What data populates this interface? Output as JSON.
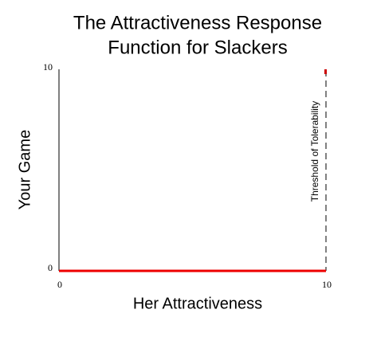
{
  "chart_data": {
    "type": "line",
    "title": [
      "The Attractiveness Response",
      "Function for Slackers"
    ],
    "x_label": "Her Attractiveness",
    "y_label": "Your Game",
    "xlim": [
      0,
      10
    ],
    "ylim": [
      0,
      10
    ],
    "xticks": [
      0,
      10
    ],
    "yticks": [
      0,
      10
    ],
    "grid": false,
    "series": [
      {
        "color": "#ee0000",
        "x": [
          0,
          10
        ],
        "values": [
          0,
          0
        ]
      },
      {
        "color": "#cc0000",
        "x": [
          10
        ],
        "values": [
          10
        ],
        "marker_only": true
      }
    ],
    "threshold": {
      "x": 10,
      "label": "Threshold of Tolerability"
    }
  }
}
